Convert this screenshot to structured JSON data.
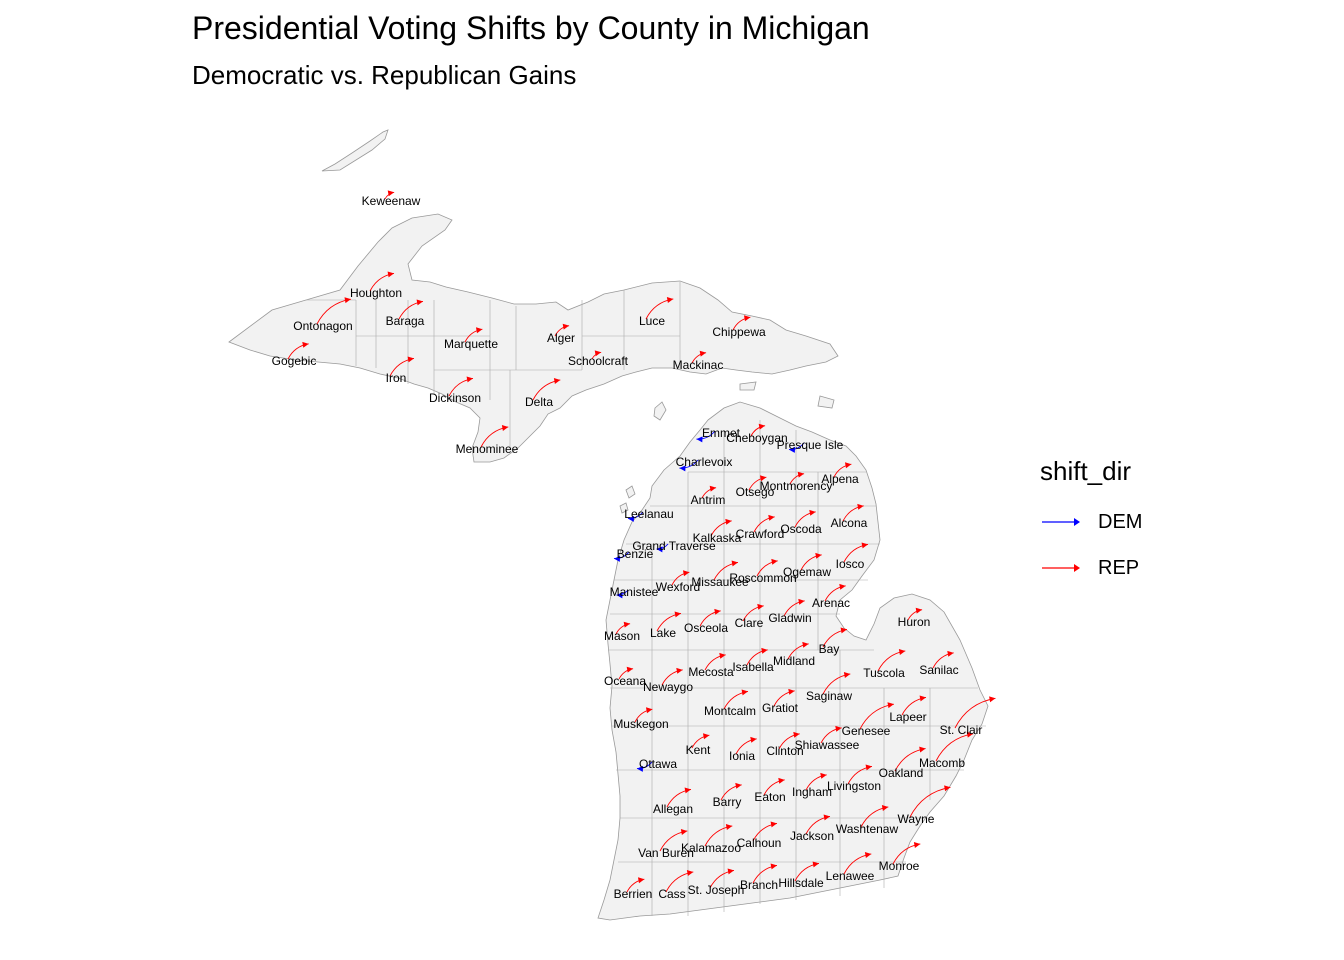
{
  "title": "Presidential Voting Shifts by County in Michigan",
  "subtitle": "Democratic vs. Republican Gains",
  "colors": {
    "DEM": "#0000ff",
    "REP": "#ff0000",
    "land": "#f2f2f2",
    "border": "#999999"
  },
  "legend": {
    "title": "shift_dir",
    "items": [
      {
        "key": "DEM",
        "label": "DEM"
      },
      {
        "key": "REP",
        "label": "REP"
      }
    ]
  },
  "counties": [
    {
      "name": "Keweenaw",
      "dir": "REP",
      "mag": 0.05
    },
    {
      "name": "Houghton",
      "dir": "REP",
      "mag": 0.5
    },
    {
      "name": "Ontonagon",
      "dir": "REP",
      "mag": 0.8
    },
    {
      "name": "Baraga",
      "dir": "REP",
      "mag": 0.5
    },
    {
      "name": "Gogebic",
      "dir": "REP",
      "mag": 0.4
    },
    {
      "name": "Marquette",
      "dir": "REP",
      "mag": 0.3
    },
    {
      "name": "Alger",
      "dir": "REP",
      "mag": 0.2
    },
    {
      "name": "Luce",
      "dir": "REP",
      "mag": 0.6
    },
    {
      "name": "Chippewa",
      "dir": "REP",
      "mag": 0.3
    },
    {
      "name": "Schoolcraft",
      "dir": "REP",
      "mag": 0.05
    },
    {
      "name": "Mackinac",
      "dir": "REP",
      "mag": 0.2
    },
    {
      "name": "Iron",
      "dir": "REP",
      "mag": 0.5
    },
    {
      "name": "Dickinson",
      "dir": "REP",
      "mag": 0.5
    },
    {
      "name": "Delta",
      "dir": "REP",
      "mag": 0.6
    },
    {
      "name": "Menominee",
      "dir": "REP",
      "mag": 0.6
    },
    {
      "name": "Emmet",
      "dir": "DEM",
      "mag": 0.3
    },
    {
      "name": "Cheboygan",
      "dir": "REP",
      "mag": 0.2
    },
    {
      "name": "Presque Isle",
      "dir": "DEM",
      "mag": 0.2
    },
    {
      "name": "Charlevoix",
      "dir": "DEM",
      "mag": 0.3
    },
    {
      "name": "Montmorency",
      "dir": "REP",
      "mag": 0.2
    },
    {
      "name": "Alpena",
      "dir": "REP",
      "mag": 0.3
    },
    {
      "name": "Otsego",
      "dir": "REP",
      "mag": 0.3
    },
    {
      "name": "Antrim",
      "dir": "REP",
      "mag": 0.2
    },
    {
      "name": "Leelanau",
      "dir": "DEM",
      "mag": 0.2
    },
    {
      "name": "Kalkaska",
      "dir": "REP",
      "mag": 0.4
    },
    {
      "name": "Crawford",
      "dir": "REP",
      "mag": 0.4
    },
    {
      "name": "Oscoda",
      "dir": "REP",
      "mag": 0.4
    },
    {
      "name": "Alcona",
      "dir": "REP",
      "mag": 0.4
    },
    {
      "name": "Grand Traverse",
      "dir": "DEM",
      "mag": 0.1
    },
    {
      "name": "Benzie",
      "dir": "DEM",
      "mag": 0.2
    },
    {
      "name": "Missaukee",
      "dir": "REP",
      "mag": 0.5
    },
    {
      "name": "Roscommon",
      "dir": "REP",
      "mag": 0.4
    },
    {
      "name": "Ogemaw",
      "dir": "REP",
      "mag": 0.4
    },
    {
      "name": "Iosco",
      "dir": "REP",
      "mag": 0.5
    },
    {
      "name": "Wexford",
      "dir": "REP",
      "mag": 0.3
    },
    {
      "name": "Manistee",
      "dir": "DEM",
      "mag": 0.1
    },
    {
      "name": "Arenac",
      "dir": "REP",
      "mag": 0.4
    },
    {
      "name": "Gladwin",
      "dir": "REP",
      "mag": 0.4
    },
    {
      "name": "Clare",
      "dir": "REP",
      "mag": 0.4
    },
    {
      "name": "Osceola",
      "dir": "REP",
      "mag": 0.4
    },
    {
      "name": "Lake",
      "dir": "REP",
      "mag": 0.5
    },
    {
      "name": "Mason",
      "dir": "REP",
      "mag": 0.2
    },
    {
      "name": "Huron",
      "dir": "REP",
      "mag": 0.2
    },
    {
      "name": "Bay",
      "dir": "REP",
      "mag": 0.5
    },
    {
      "name": "Midland",
      "dir": "REP",
      "mag": 0.4
    },
    {
      "name": "Isabella",
      "dir": "REP",
      "mag": 0.4
    },
    {
      "name": "Mecosta",
      "dir": "REP",
      "mag": 0.4
    },
    {
      "name": "Oceana",
      "dir": "REP",
      "mag": 0.2
    },
    {
      "name": "Newaygo",
      "dir": "REP",
      "mag": 0.4
    },
    {
      "name": "Tuscola",
      "dir": "REP",
      "mag": 0.6
    },
    {
      "name": "Sanilac",
      "dir": "REP",
      "mag": 0.4
    },
    {
      "name": "Saginaw",
      "dir": "REP",
      "mag": 0.6
    },
    {
      "name": "Gratiot",
      "dir": "REP",
      "mag": 0.4
    },
    {
      "name": "Montcalm",
      "dir": "REP",
      "mag": 0.5
    },
    {
      "name": "Muskegon",
      "dir": "REP",
      "mag": 0.3
    },
    {
      "name": "Lapeer",
      "dir": "REP",
      "mag": 0.5
    },
    {
      "name": "St. Clair",
      "dir": "REP",
      "mag": 1.0
    },
    {
      "name": "Genesee",
      "dir": "REP",
      "mag": 0.8
    },
    {
      "name": "Shiawassee",
      "dir": "REP",
      "mag": 0.4
    },
    {
      "name": "Clinton",
      "dir": "REP",
      "mag": 0.4
    },
    {
      "name": "Ionia",
      "dir": "REP",
      "mag": 0.4
    },
    {
      "name": "Kent",
      "dir": "REP",
      "mag": 0.3
    },
    {
      "name": "Ottawa",
      "dir": "DEM",
      "mag": 0.2
    },
    {
      "name": "Macomb",
      "dir": "REP",
      "mag": 0.9
    },
    {
      "name": "Oakland",
      "dir": "REP",
      "mag": 0.7
    },
    {
      "name": "Livingston",
      "dir": "REP",
      "mag": 0.5
    },
    {
      "name": "Ingham",
      "dir": "REP",
      "mag": 0.4
    },
    {
      "name": "Eaton",
      "dir": "REP",
      "mag": 0.4
    },
    {
      "name": "Barry",
      "dir": "REP",
      "mag": 0.4
    },
    {
      "name": "Allegan",
      "dir": "REP",
      "mag": 0.5
    },
    {
      "name": "Wayne",
      "dir": "REP",
      "mag": 1.0
    },
    {
      "name": "Washtenaw",
      "dir": "REP",
      "mag": 0.6
    },
    {
      "name": "Jackson",
      "dir": "REP",
      "mag": 0.5
    },
    {
      "name": "Calhoun",
      "dir": "REP",
      "mag": 0.5
    },
    {
      "name": "Kalamazoo",
      "dir": "REP",
      "mag": 0.6
    },
    {
      "name": "Van Buren",
      "dir": "REP",
      "mag": 0.6
    },
    {
      "name": "Monroe",
      "dir": "REP",
      "mag": 0.6
    },
    {
      "name": "Lenawee",
      "dir": "REP",
      "mag": 0.6
    },
    {
      "name": "Hillsdale",
      "dir": "REP",
      "mag": 0.5
    },
    {
      "name": "Branch",
      "dir": "REP",
      "mag": 0.5
    },
    {
      "name": "St. Joseph",
      "dir": "REP",
      "mag": 0.5
    },
    {
      "name": "Cass",
      "dir": "REP",
      "mag": 0.6
    },
    {
      "name": "Berrien",
      "dir": "REP",
      "mag": 0.3
    }
  ]
}
